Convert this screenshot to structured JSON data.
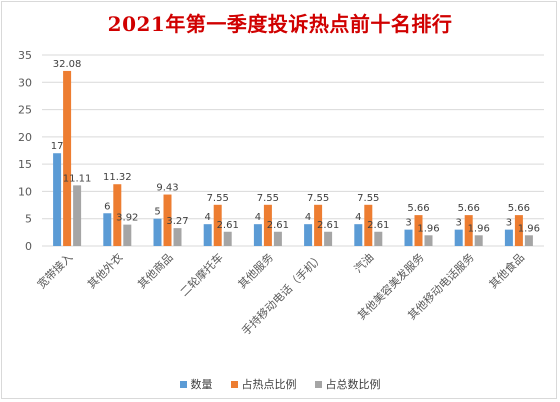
{
  "chart_data": {
    "type": "bar",
    "title": "2021年第一季度投诉热点前十名排行",
    "categories": [
      "宽带接入",
      "其他外衣",
      "其他商品",
      "二轮摩托车",
      "其他服务",
      "手持移动电话（手机）",
      "汽油",
      "其他美容美发服务",
      "其他移动电话服务",
      "其他食品"
    ],
    "series": [
      {
        "name": "数量",
        "values": [
          17,
          6,
          5,
          4,
          4,
          4,
          4,
          3,
          3,
          3
        ],
        "labels": [
          "17",
          "6",
          "5",
          "4",
          "4",
          "4",
          "4",
          "3",
          "3",
          "3"
        ],
        "color": "#5b9bd5"
      },
      {
        "name": "占热点比例",
        "values": [
          32.08,
          11.32,
          9.43,
          7.55,
          7.55,
          7.55,
          7.55,
          5.66,
          5.66,
          5.66
        ],
        "labels": [
          "32.08",
          "11.32",
          "9.43",
          "7.55",
          "7.55",
          "7.55",
          "7.55",
          "5.66",
          "5.66",
          "5.66"
        ],
        "color": "#ed7d31"
      },
      {
        "name": "占总数比例",
        "values": [
          11.11,
          3.92,
          3.27,
          2.61,
          2.61,
          2.61,
          2.61,
          1.96,
          1.96,
          1.96
        ],
        "labels": [
          "11.11",
          "3.92",
          "3.27",
          "2.61",
          "2.61",
          "2.61",
          "2.61",
          "1.96",
          "1.96",
          "1.96"
        ],
        "color": "#a5a5a5"
      }
    ],
    "yticks": [
      "0",
      "5",
      "10",
      "15",
      "20",
      "25",
      "30",
      "35"
    ],
    "ylim": [
      0,
      35
    ],
    "grid": true,
    "legend": "bottom"
  }
}
